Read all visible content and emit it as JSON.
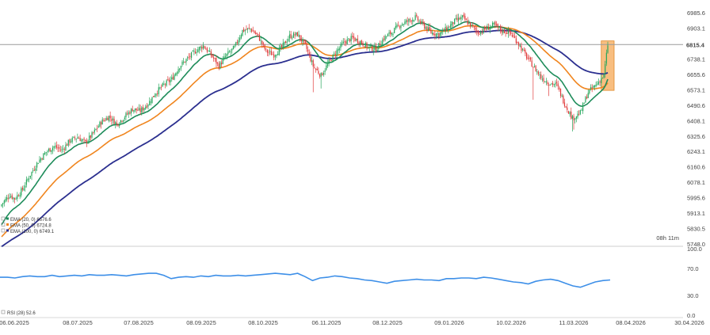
{
  "chart_data": {
    "type": "candlestick",
    "price_panel": {
      "y_ticks": [
        "6985.6",
        "6903.1",
        "6820.6",
        "6738.1",
        "6655.6",
        "6573.1",
        "6490.6",
        "6408.1",
        "6325.6",
        "6243.1",
        "6160.6",
        "6078.1",
        "5995.6",
        "5913.1",
        "5830.5",
        "5748.0"
      ],
      "ylim": [
        5748.0,
        7020
      ],
      "current_price": "6815.4",
      "countdown": "08h 11m",
      "legend": [
        {
          "label": "EMA (20, 0)",
          "value": "6676.6",
          "color": "#1e8c5a"
        },
        {
          "label": "EMA (50, 0)",
          "value": "6724.8",
          "color": "#f0851e"
        },
        {
          "label": "EMA (100, 0)",
          "value": "6749.1",
          "color": "#2b2f8f"
        }
      ],
      "colors": {
        "up": "#26a65b",
        "down": "#e03b3b",
        "highlight": "#f5a24a"
      },
      "close_anchors": [
        [
          0,
          5960
        ],
        [
          6,
          6010
        ],
        [
          10,
          5990
        ],
        [
          16,
          6040
        ],
        [
          22,
          6120
        ],
        [
          28,
          6190
        ],
        [
          34,
          6240
        ],
        [
          40,
          6270
        ],
        [
          46,
          6250
        ],
        [
          52,
          6300
        ],
        [
          58,
          6320
        ],
        [
          64,
          6290
        ],
        [
          70,
          6340
        ],
        [
          76,
          6400
        ],
        [
          82,
          6430
        ],
        [
          88,
          6390
        ],
        [
          94,
          6430
        ],
        [
          100,
          6470
        ],
        [
          106,
          6460
        ],
        [
          112,
          6500
        ],
        [
          118,
          6560
        ],
        [
          124,
          6600
        ],
        [
          130,
          6630
        ],
        [
          136,
          6700
        ],
        [
          142,
          6740
        ],
        [
          148,
          6780
        ],
        [
          154,
          6810
        ],
        [
          160,
          6760
        ],
        [
          166,
          6700
        ],
        [
          172,
          6760
        ],
        [
          178,
          6800
        ],
        [
          184,
          6890
        ],
        [
          190,
          6900
        ],
        [
          196,
          6860
        ],
        [
          202,
          6780
        ],
        [
          208,
          6760
        ],
        [
          214,
          6800
        ],
        [
          220,
          6860
        ],
        [
          226,
          6870
        ],
        [
          232,
          6810
        ],
        [
          238,
          6700
        ],
        [
          244,
          6650
        ],
        [
          250,
          6720
        ],
        [
          256,
          6780
        ],
        [
          262,
          6830
        ],
        [
          268,
          6850
        ],
        [
          274,
          6830
        ],
        [
          280,
          6800
        ],
        [
          286,
          6790
        ],
        [
          292,
          6850
        ],
        [
          298,
          6880
        ],
        [
          304,
          6920
        ],
        [
          310,
          6940
        ],
        [
          316,
          6960
        ],
        [
          322,
          6920
        ],
        [
          328,
          6880
        ],
        [
          334,
          6870
        ],
        [
          340,
          6900
        ],
        [
          346,
          6940
        ],
        [
          352,
          6960
        ],
        [
          358,
          6920
        ],
        [
          364,
          6880
        ],
        [
          370,
          6900
        ],
        [
          376,
          6920
        ],
        [
          382,
          6890
        ],
        [
          388,
          6880
        ],
        [
          394,
          6830
        ],
        [
          400,
          6760
        ],
        [
          406,
          6700
        ],
        [
          412,
          6640
        ],
        [
          418,
          6610
        ],
        [
          424,
          6600
        ],
        [
          430,
          6500
        ],
        [
          436,
          6420
        ],
        [
          442,
          6450
        ],
        [
          448,
          6560
        ],
        [
          454,
          6600
        ],
        [
          460,
          6650
        ],
        [
          463,
          6815
        ]
      ]
    },
    "rsi_panel": {
      "label": "RSI (28)",
      "value": "52.6",
      "y_ticks": [
        "100.0",
        "70.0",
        "30.0",
        "0.0"
      ],
      "ylim": [
        0,
        100
      ],
      "values": [
        57,
        57,
        56,
        58,
        59,
        58,
        58,
        60,
        58,
        59,
        60,
        59,
        61,
        60,
        60,
        61,
        60,
        59,
        61,
        62,
        63,
        63,
        60,
        55,
        57,
        58,
        57,
        59,
        58,
        60,
        59,
        59,
        60,
        59,
        60,
        61,
        62,
        63,
        62,
        61,
        63,
        58,
        52,
        56,
        57,
        59,
        58,
        56,
        55,
        53,
        52,
        50,
        48,
        51,
        52,
        53,
        54,
        53,
        53,
        52,
        55,
        55,
        56,
        56,
        55,
        57,
        56,
        54,
        52,
        50,
        49,
        47,
        51,
        53,
        54,
        52,
        48,
        44,
        42,
        46,
        50,
        52,
        53
      ],
      "color": "#3d8fe8"
    },
    "x_ticks": [
      "06.06.2025",
      "08.07.2025",
      "07.08.2025",
      "08.09.2025",
      "08.10.2025",
      "06.11.2025",
      "08.12.2025",
      "09.01.2026",
      "10.02.2026",
      "11.03.2026",
      "08.04.2026",
      "30.04.2026"
    ]
  }
}
